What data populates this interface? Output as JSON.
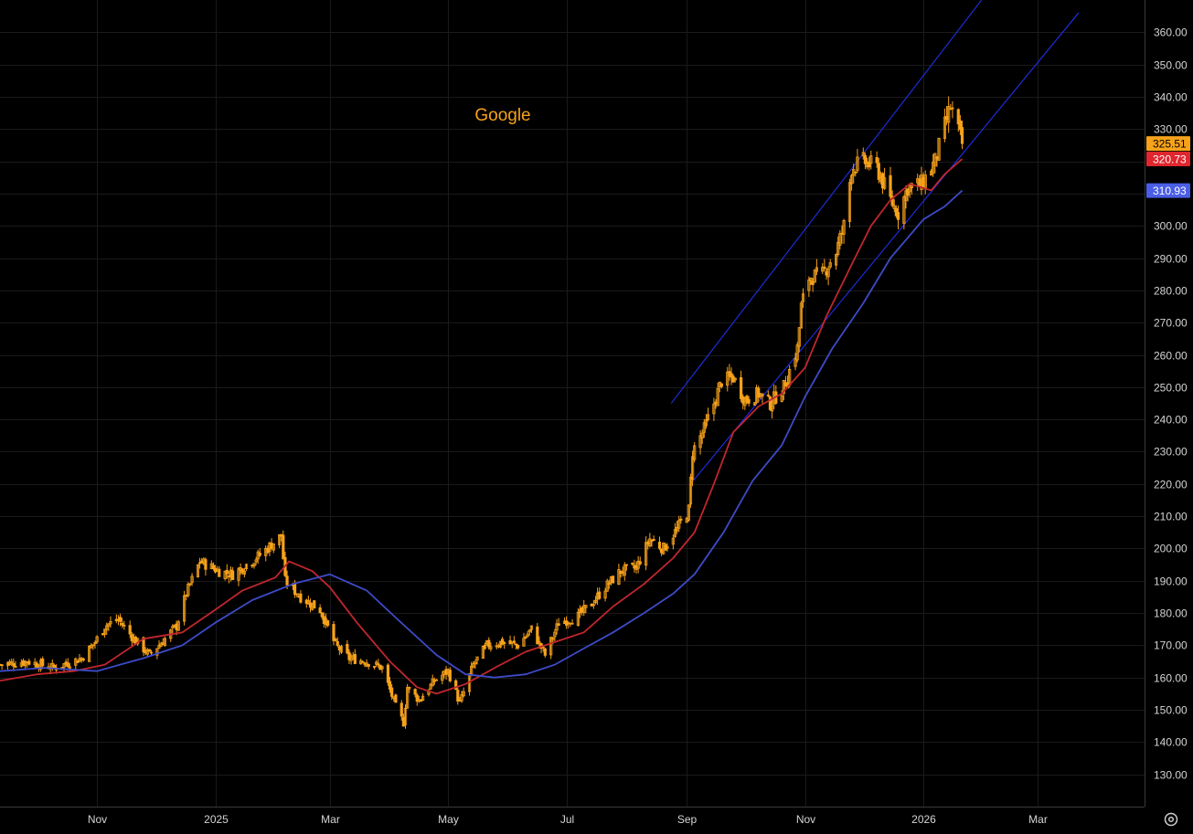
{
  "chart_data": {
    "type": "candlestick",
    "title": "Google",
    "ylim": [
      120,
      370
    ],
    "y_ticks": [
      130,
      140,
      150,
      160,
      170,
      180,
      190,
      200,
      210,
      220,
      230,
      240,
      250,
      260,
      270,
      280,
      290,
      300,
      310,
      320,
      330,
      340,
      350,
      360
    ],
    "x_tick_labels": [
      "Nov",
      "2025",
      "Mar",
      "May",
      "Jul",
      "Sep",
      "Nov",
      "2026",
      "Mar"
    ],
    "x_tick_dates": [
      "2024-11-01",
      "2025-01-01",
      "2025-03-01",
      "2025-05-01",
      "2025-07-01",
      "2025-09-01",
      "2025-11-01",
      "2026-01-01",
      "2026-03-01"
    ],
    "x_range": [
      "2024-09-12",
      "2026-04-25"
    ],
    "grid": true,
    "price_close": [
      [
        "2024-09-12",
        164
      ],
      [
        "2024-09-26",
        165
      ],
      [
        "2024-10-10",
        163
      ],
      [
        "2024-10-24",
        166
      ],
      [
        "2024-10-31",
        171
      ],
      [
        "2024-11-05",
        176
      ],
      [
        "2024-11-12",
        178
      ],
      [
        "2024-11-20",
        172
      ],
      [
        "2024-11-28",
        167
      ],
      [
        "2024-12-06",
        172
      ],
      [
        "2024-12-12",
        176
      ],
      [
        "2024-12-17",
        186
      ],
      [
        "2024-12-24",
        196
      ],
      [
        "2025-01-03",
        193
      ],
      [
        "2025-01-10",
        192
      ],
      [
        "2025-01-17",
        195
      ],
      [
        "2025-01-24",
        198
      ],
      [
        "2025-02-04",
        204
      ],
      [
        "2025-02-06",
        190
      ],
      [
        "2025-02-14",
        185
      ],
      [
        "2025-02-24",
        181
      ],
      [
        "2025-03-04",
        170
      ],
      [
        "2025-03-11",
        166
      ],
      [
        "2025-03-20",
        165
      ],
      [
        "2025-03-28",
        163
      ],
      [
        "2025-04-04",
        151
      ],
      [
        "2025-04-08",
        146
      ],
      [
        "2025-04-10",
        157
      ],
      [
        "2025-04-16",
        153
      ],
      [
        "2025-04-24",
        159
      ],
      [
        "2025-05-01",
        162
      ],
      [
        "2025-05-07",
        152
      ],
      [
        "2025-05-14",
        164
      ],
      [
        "2025-05-21",
        170
      ],
      [
        "2025-05-29",
        171
      ],
      [
        "2025-06-06",
        170
      ],
      [
        "2025-06-13",
        175
      ],
      [
        "2025-06-20",
        167
      ],
      [
        "2025-06-27",
        177
      ],
      [
        "2025-07-07",
        179
      ],
      [
        "2025-07-14",
        183
      ],
      [
        "2025-07-21",
        188
      ],
      [
        "2025-07-29",
        193
      ],
      [
        "2025-08-06",
        194
      ],
      [
        "2025-08-13",
        203
      ],
      [
        "2025-08-20",
        200
      ],
      [
        "2025-08-27",
        206
      ],
      [
        "2025-09-02",
        212
      ],
      [
        "2025-09-04",
        230
      ],
      [
        "2025-09-10",
        237
      ],
      [
        "2025-09-15",
        245
      ],
      [
        "2025-09-19",
        252
      ],
      [
        "2025-09-25",
        253
      ],
      [
        "2025-10-01",
        246
      ],
      [
        "2025-10-08",
        248
      ],
      [
        "2025-10-14",
        245
      ],
      [
        "2025-10-21",
        250
      ],
      [
        "2025-10-28",
        262
      ],
      [
        "2025-10-30",
        275
      ],
      [
        "2025-11-03",
        284
      ],
      [
        "2025-11-10",
        285
      ],
      [
        "2025-11-17",
        292
      ],
      [
        "2025-11-21",
        300
      ],
      [
        "2025-11-25",
        318
      ],
      [
        "2025-12-01",
        320
      ],
      [
        "2025-12-08",
        318
      ],
      [
        "2025-12-15",
        308
      ],
      [
        "2025-12-19",
        304
      ],
      [
        "2025-12-24",
        312
      ],
      [
        "2025-12-31",
        313
      ],
      [
        "2026-01-07",
        320
      ],
      [
        "2026-01-12",
        331
      ],
      [
        "2026-01-15",
        337
      ],
      [
        "2026-01-21",
        325.51
      ]
    ],
    "series": [
      {
        "name": "",
        "values": [
          [
            "2024-09-12",
            159
          ],
          [
            "2024-10-01",
            161
          ],
          [
            "2024-10-20",
            162
          ],
          [
            "2024-11-05",
            164
          ],
          [
            "2024-11-25",
            172
          ],
          [
            "2024-12-15",
            174
          ],
          [
            "2025-01-01",
            181
          ],
          [
            "2025-01-15",
            187
          ],
          [
            "2025-02-01",
            191
          ],
          [
            "2025-02-08",
            196
          ],
          [
            "2025-02-20",
            193
          ],
          [
            "2025-03-01",
            188
          ],
          [
            "2025-03-15",
            177
          ],
          [
            "2025-04-01",
            165
          ],
          [
            "2025-04-15",
            157
          ],
          [
            "2025-04-25",
            155
          ],
          [
            "2025-05-10",
            158
          ],
          [
            "2025-05-25",
            163
          ],
          [
            "2025-06-10",
            168
          ],
          [
            "2025-06-25",
            171
          ],
          [
            "2025-07-10",
            174
          ],
          [
            "2025-07-25",
            182
          ],
          [
            "2025-08-10",
            189
          ],
          [
            "2025-08-25",
            197
          ],
          [
            "2025-09-05",
            205
          ],
          [
            "2025-09-15",
            220
          ],
          [
            "2025-09-25",
            236
          ],
          [
            "2025-10-08",
            244
          ],
          [
            "2025-10-20",
            248
          ],
          [
            "2025-11-01",
            256
          ],
          [
            "2025-11-12",
            272
          ],
          [
            "2025-11-25",
            288
          ],
          [
            "2025-12-05",
            300
          ],
          [
            "2025-12-15",
            308
          ],
          [
            "2025-12-25",
            313
          ],
          [
            "2026-01-05",
            311
          ],
          [
            "2026-01-12",
            316
          ],
          [
            "2026-01-21",
            320.73
          ]
        ]
      },
      {
        "name": "",
        "values": [
          [
            "2024-09-12",
            162
          ],
          [
            "2024-10-05",
            163
          ],
          [
            "2024-11-01",
            162
          ],
          [
            "2024-11-25",
            166
          ],
          [
            "2024-12-15",
            170
          ],
          [
            "2025-01-01",
            177
          ],
          [
            "2025-01-20",
            184
          ],
          [
            "2025-02-10",
            189
          ],
          [
            "2025-03-01",
            192
          ],
          [
            "2025-03-20",
            187
          ],
          [
            "2025-04-05",
            178
          ],
          [
            "2025-04-25",
            167
          ],
          [
            "2025-05-10",
            161
          ],
          [
            "2025-05-25",
            160
          ],
          [
            "2025-06-10",
            161
          ],
          [
            "2025-06-25",
            164
          ],
          [
            "2025-07-10",
            169
          ],
          [
            "2025-07-25",
            174
          ],
          [
            "2025-08-10",
            180
          ],
          [
            "2025-08-25",
            186
          ],
          [
            "2025-09-05",
            192
          ],
          [
            "2025-09-20",
            205
          ],
          [
            "2025-10-05",
            221
          ],
          [
            "2025-10-20",
            232
          ],
          [
            "2025-11-01",
            247
          ],
          [
            "2025-11-15",
            262
          ],
          [
            "2025-12-01",
            276
          ],
          [
            "2025-12-15",
            290
          ],
          [
            "2026-01-01",
            302
          ],
          [
            "2026-01-12",
            306
          ],
          [
            "2026-01-21",
            310.93
          ]
        ]
      }
    ],
    "trend_lines": [
      {
        "from": [
          "2025-08-24",
          245
        ],
        "to": [
          "2026-01-31",
          370
        ]
      },
      {
        "from": [
          "2025-09-03",
          220
        ],
        "to": [
          "2026-03-22",
          366
        ]
      }
    ],
    "last_values": {
      "price": "325.51",
      "ma_fast": "320.73",
      "ma_slow": "310.93"
    },
    "colors": {
      "background": "#000000",
      "grid": "#1a1a1a",
      "candle": "#f7a21b",
      "ma_fast": "#c0272d",
      "ma_slow": "#3d4bc7",
      "trend_line": "#2233ff",
      "title": "#f7a21b",
      "tag_price": "#f7a21b",
      "tag_fast": "#e0262e",
      "tag_slow": "#4a5ee6"
    }
  },
  "controls": {
    "settings_icon": "settings-gear-icon"
  }
}
